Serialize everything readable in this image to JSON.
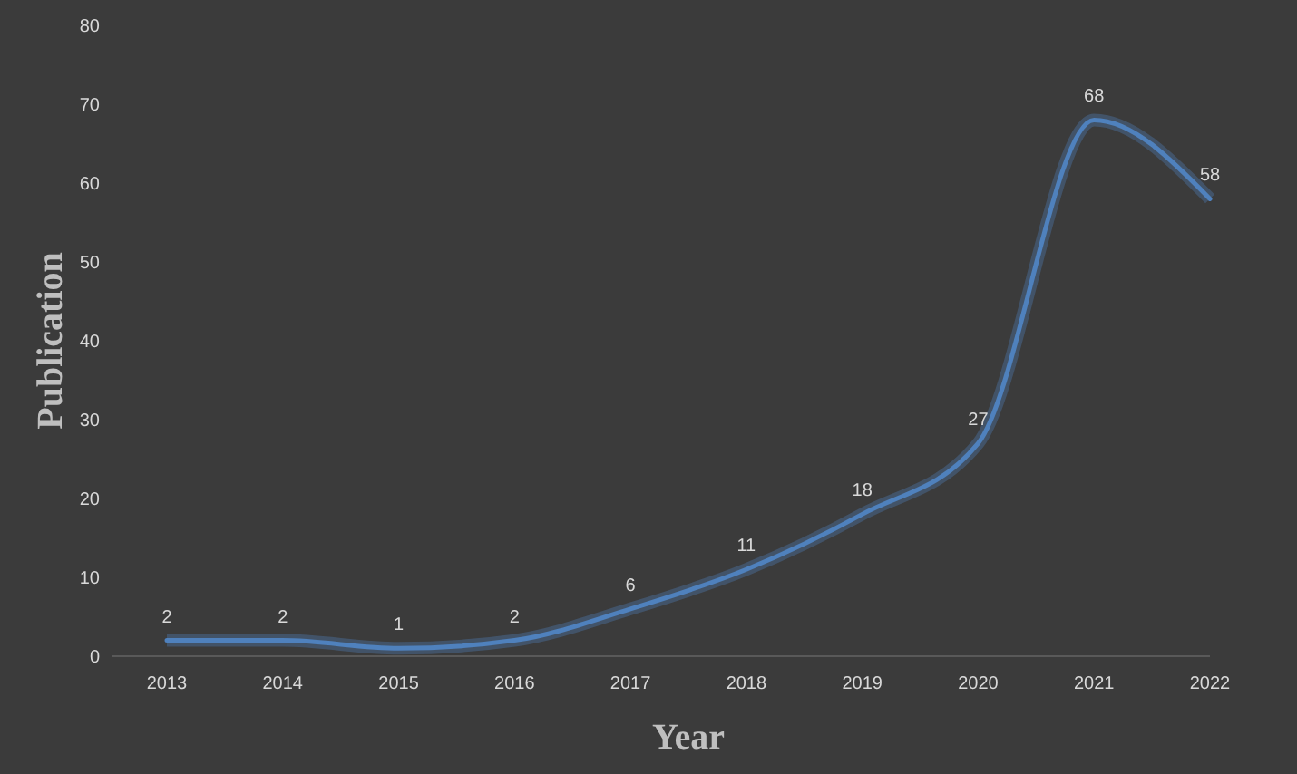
{
  "chart_data": {
    "type": "line",
    "xlabel": "Year",
    "ylabel": "Publication",
    "categories": [
      "2013",
      "2014",
      "2015",
      "2016",
      "2017",
      "2018",
      "2019",
      "2020",
      "2021",
      "2022"
    ],
    "series": [
      {
        "color": "#4f81bd",
        "values": [
          2,
          2,
          1,
          2,
          6,
          11,
          18,
          27,
          68,
          58
        ]
      }
    ],
    "ylim": [
      0,
      80
    ],
    "yticks": [
      0,
      10,
      20,
      30,
      40,
      50,
      60,
      70,
      80
    ],
    "data_labels": true,
    "marker": "none",
    "line_style": "solid"
  }
}
